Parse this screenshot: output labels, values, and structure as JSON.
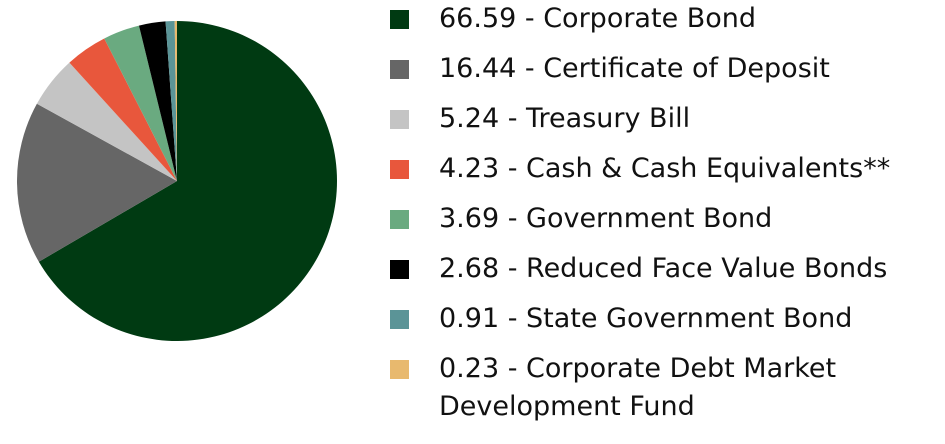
{
  "chart_data": {
    "type": "pie",
    "categories": [
      "66.59 - Corporate Bond",
      "16.44 - Certificate of Deposit",
      "5.24 - Treasury Bill",
      "4.23 - Cash & Cash Equivalents**",
      "3.69 - Government Bond",
      "2.68 - Reduced Face Value Bonds",
      "0.91 - State Government Bond",
      "0.23 - Corporate Debt Market Development Fund"
    ],
    "values": [
      66.59,
      16.44,
      5.24,
      4.23,
      3.69,
      2.68,
      0.91,
      0.23
    ],
    "colors": [
      "#003a12",
      "#666666",
      "#c4c4c4",
      "#e8573c",
      "#6aaa80",
      "#000000",
      "#5b9497",
      "#e8b96e"
    ]
  }
}
